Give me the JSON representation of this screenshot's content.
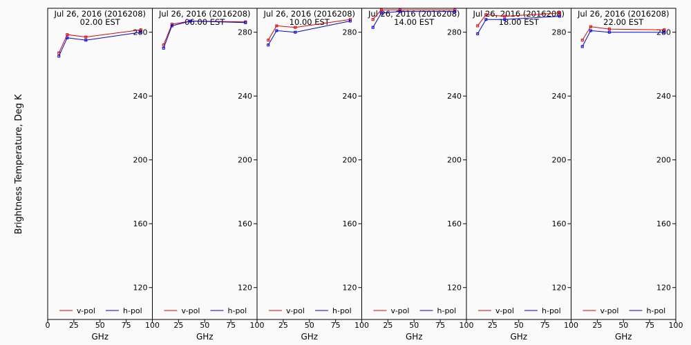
{
  "chart_data": {
    "type": "line",
    "ylabel": "Brightness Temperature, Deg K",
    "xlabel": "GHz",
    "xlim": [
      0,
      100
    ],
    "ylim": [
      100,
      295
    ],
    "x_ticks": [
      0,
      25,
      50,
      75,
      100
    ],
    "y_ticks": [
      120,
      160,
      200,
      240,
      280
    ],
    "legend": {
      "placement": "bottom",
      "entries": [
        "v-pol",
        "h-pol"
      ]
    },
    "colors": {
      "v-pol": "#e00000",
      "h-pol": "#0000e0"
    },
    "panels": [
      {
        "title": "Jul 26, 2016 (2016208)",
        "subtitle": "02.00 EST",
        "x": [
          10.7,
          18.7,
          36.5,
          89.0
        ],
        "series": [
          {
            "name": "v-pol",
            "values": [
              267,
              278.5,
              277,
              281.5
            ]
          },
          {
            "name": "h-pol",
            "values": [
              265,
              276.5,
              275,
              280
            ]
          }
        ]
      },
      {
        "title": "Jul 26, 2016 (2016208)",
        "subtitle": "06.00 EST",
        "x": [
          10.7,
          18.7,
          36.5,
          89.0
        ],
        "series": [
          {
            "name": "v-pol",
            "values": [
              272,
              285,
              287,
              286.5
            ]
          },
          {
            "name": "h-pol",
            "values": [
              270,
              284,
              287,
              286
            ]
          }
        ]
      },
      {
        "title": "Jul 26, 2016 (2016208)",
        "subtitle": "10.00 EST",
        "x": [
          10.7,
          18.7,
          36.5,
          89.0
        ],
        "series": [
          {
            "name": "v-pol",
            "values": [
              275,
              284,
              283,
              288
            ]
          },
          {
            "name": "h-pol",
            "values": [
              272,
              281,
              280,
              287
            ]
          }
        ]
      },
      {
        "title": "Jul 26, 2016 (2016208)",
        "subtitle": "14.00 EST",
        "x": [
          10.7,
          18.7,
          36.5,
          89.0
        ],
        "series": [
          {
            "name": "v-pol",
            "values": [
              288,
              294,
              294,
              294
            ]
          },
          {
            "name": "h-pol",
            "values": [
              283,
              292,
              293,
              293
            ]
          }
        ]
      },
      {
        "title": "Jul 26, 2016 (2016208)",
        "subtitle": "18.00 EST",
        "x": [
          10.7,
          18.7,
          36.5,
          89.0
        ],
        "series": [
          {
            "name": "v-pol",
            "values": [
              284,
              291,
              290,
              292
            ]
          },
          {
            "name": "h-pol",
            "values": [
              279,
              288,
              288,
              290
            ]
          }
        ]
      },
      {
        "title": "Jul 26, 2016 (2016208)",
        "subtitle": "22.00 EST",
        "x": [
          10.7,
          18.7,
          36.5,
          89.0
        ],
        "series": [
          {
            "name": "v-pol",
            "values": [
              275,
              283.5,
              282,
              281.5
            ]
          },
          {
            "name": "h-pol",
            "values": [
              271,
              281,
              280,
              280
            ]
          }
        ]
      }
    ]
  }
}
